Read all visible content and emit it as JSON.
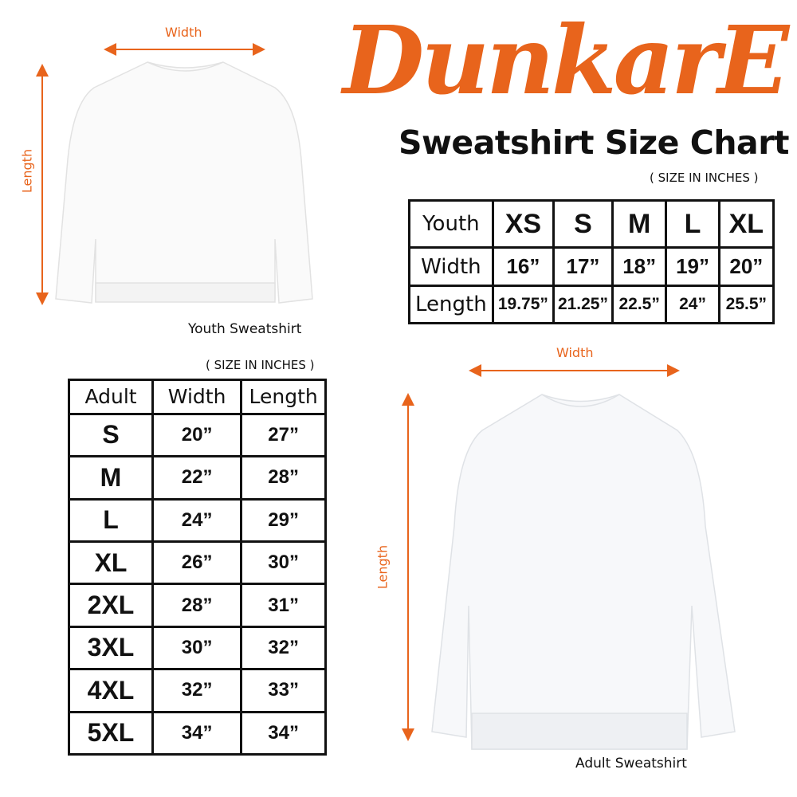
{
  "brand": {
    "logo_text": "DunkarE",
    "color": "#e8641c"
  },
  "title": "Sweatshirt Size Chart",
  "youth": {
    "units": "( SIZE IN INCHES )",
    "width_label": "Width",
    "length_label": "Length",
    "caption": "Youth Sweatshirt",
    "header": [
      "Youth",
      "XS",
      "S",
      "M",
      "L",
      "XL"
    ],
    "rows": [
      [
        "Width",
        "16”",
        "17”",
        "18”",
        "19”",
        "20”"
      ],
      [
        "Length",
        "19.75”",
        "21.25”",
        "22.5”",
        "24”",
        "25.5”"
      ]
    ]
  },
  "adult": {
    "units": "( SIZE IN INCHES )",
    "width_label": "Width",
    "length_label": "Length",
    "caption": "Adult Sweatshirt",
    "header": [
      "Adult",
      "Width",
      "Length"
    ],
    "rows": [
      [
        "S",
        "20”",
        "27”"
      ],
      [
        "M",
        "22”",
        "28”"
      ],
      [
        "L",
        "24”",
        "29”"
      ],
      [
        "XL",
        "26”",
        "30”"
      ],
      [
        "2XL",
        "28”",
        "31”"
      ],
      [
        "3XL",
        "30”",
        "32”"
      ],
      [
        "4XL",
        "32”",
        "33”"
      ],
      [
        "5XL",
        "34”",
        "34”"
      ]
    ]
  }
}
